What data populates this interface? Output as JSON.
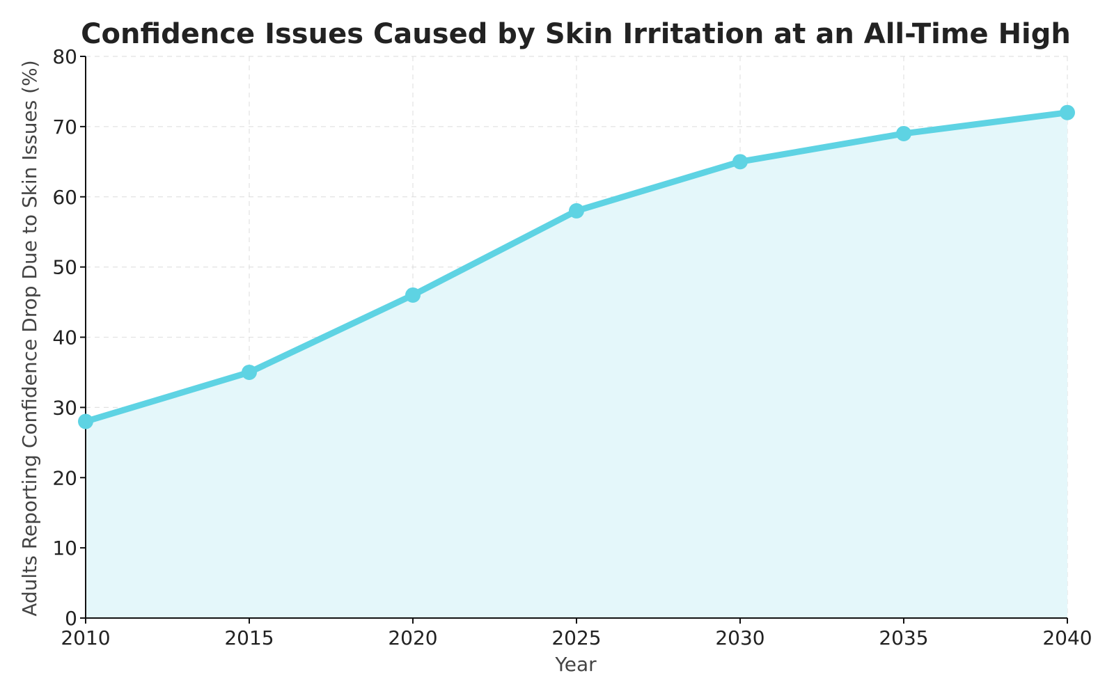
{
  "chart_data": {
    "type": "line",
    "title": "Confidence Issues Caused by Skin Irritation at an All-Time High",
    "xlabel": "Year",
    "ylabel": "Adults Reporting Confidence Drop Due to Skin Issues (%)",
    "x": [
      2010,
      2015,
      2020,
      2025,
      2030,
      2035,
      2040
    ],
    "xticks": [
      "2010",
      "2015",
      "2020",
      "2025",
      "2030",
      "2035",
      "2040"
    ],
    "xlim": [
      2010,
      2040
    ],
    "yticks": [
      "0",
      "10",
      "20",
      "30",
      "40",
      "50",
      "60",
      "70",
      "80"
    ],
    "ylim": [
      0,
      80
    ],
    "grid": true,
    "fill_under": true,
    "series": [
      {
        "name": "Adults Reporting Confidence Drop Due to Skin Issues (%)",
        "values": [
          28,
          35,
          46,
          58,
          65,
          69,
          72
        ],
        "color": "#5ed3e3",
        "fill_color": "#e4f7fa"
      }
    ]
  }
}
